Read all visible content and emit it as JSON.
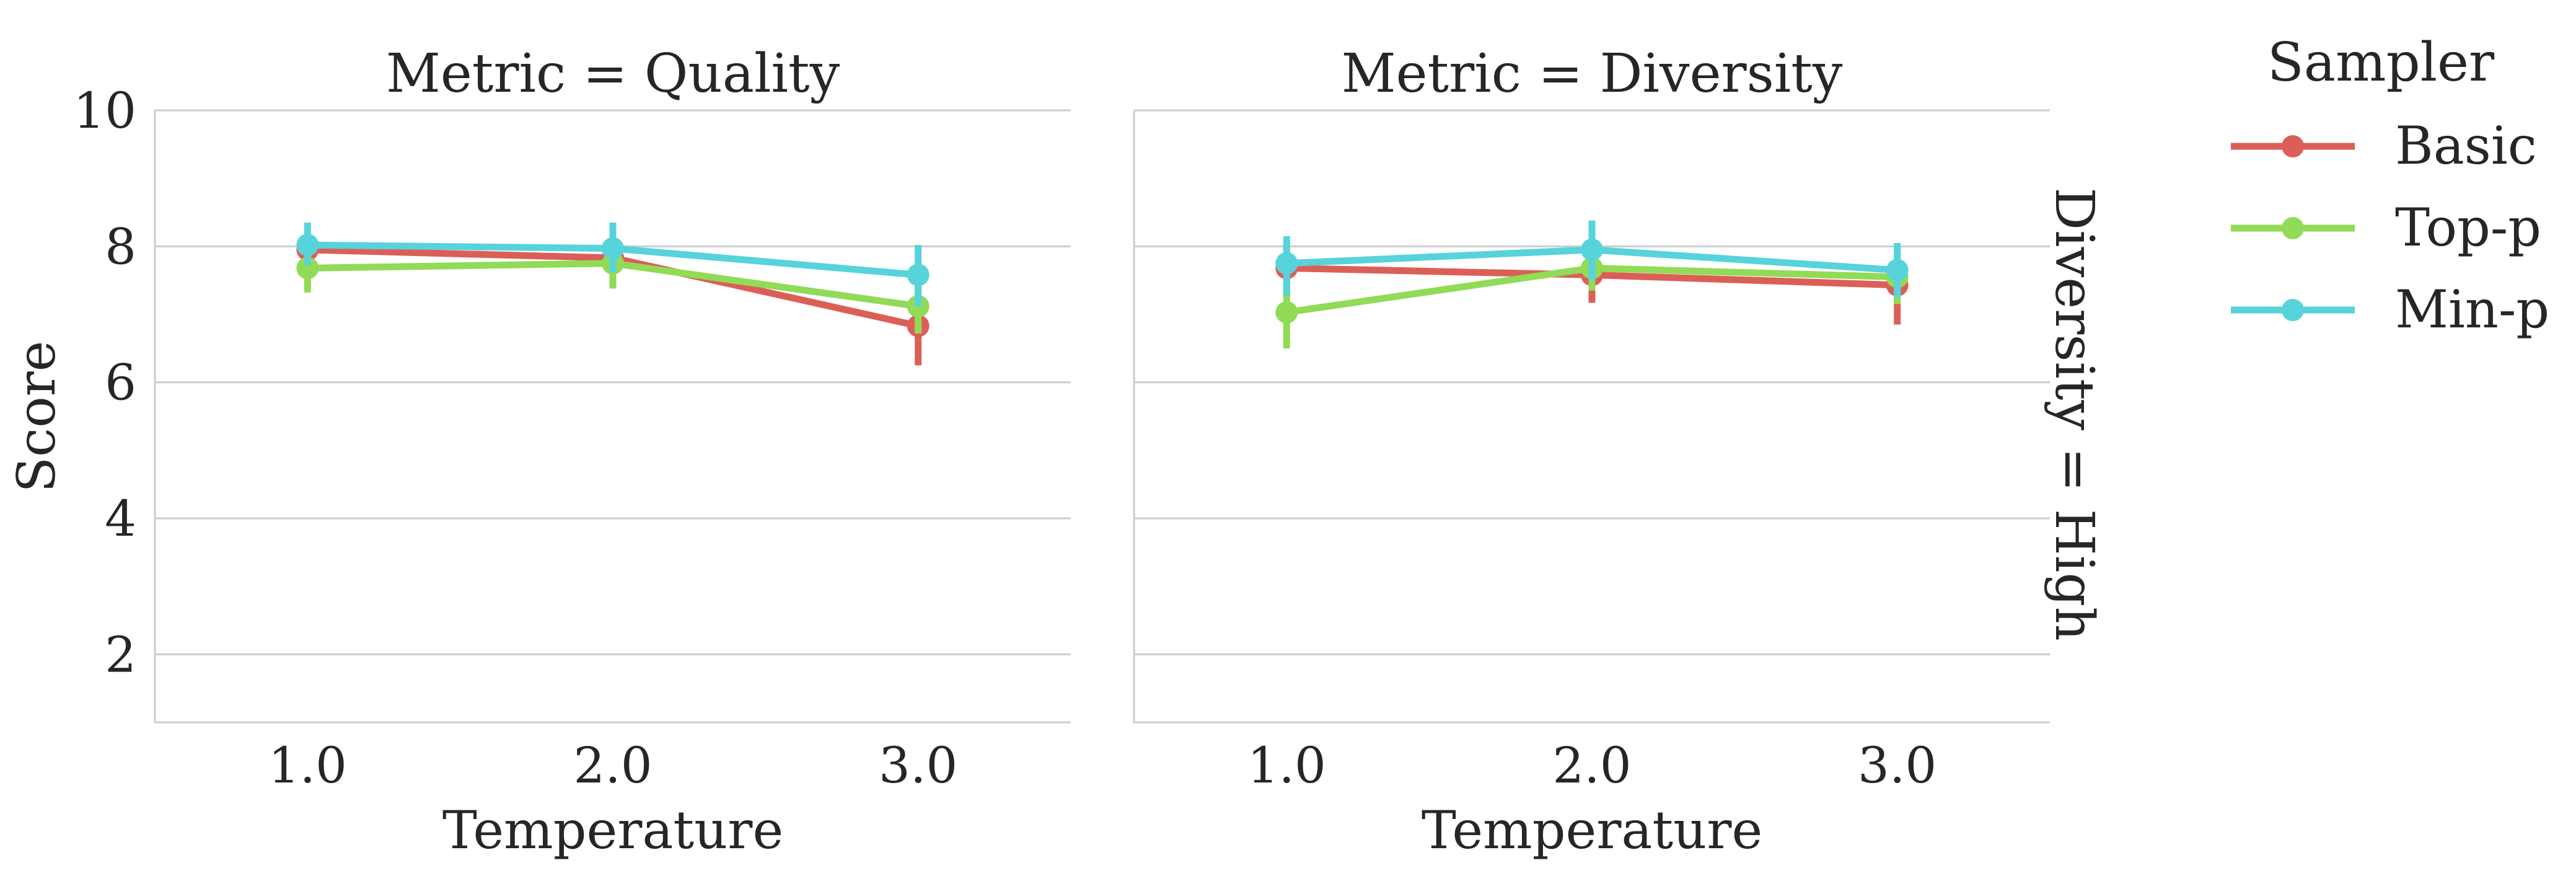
{
  "chart_data": {
    "type": "line",
    "ylabel": "Score",
    "xlabel": "Temperature",
    "ylim": [
      1,
      10
    ],
    "yticks": [
      2,
      4,
      6,
      8,
      10
    ],
    "categories": [
      "1.0",
      "2.0",
      "3.0"
    ],
    "row_label": "Diversity = High",
    "grid": "horizontal",
    "legend": {
      "title": "Sampler",
      "placement": "right",
      "entries": [
        "Basic",
        "Top-p",
        "Min-p"
      ]
    },
    "panels": [
      {
        "title": "Metric = Quality",
        "series": [
          {
            "name": "Basic",
            "color": "#db5f57",
            "values": [
              7.95,
              7.83,
              6.83
            ],
            "err_low": [
              7.75,
              7.55,
              6.25
            ],
            "err_high": [
              8.15,
              8.05,
              7.35
            ]
          },
          {
            "name": "Top-p",
            "color": "#91db57",
            "values": [
              7.68,
              7.75,
              7.12
            ],
            "err_low": [
              7.32,
              7.38,
              6.72
            ],
            "err_high": [
              8.02,
              8.08,
              7.48
            ]
          },
          {
            "name": "Min-p",
            "color": "#57d3db",
            "values": [
              8.02,
              7.97,
              7.58
            ],
            "err_low": [
              7.72,
              7.62,
              7.12
            ],
            "err_high": [
              8.35,
              8.35,
              8.02
            ]
          }
        ]
      },
      {
        "title": "Metric = Diversity",
        "series": [
          {
            "name": "Basic",
            "color": "#db5f57",
            "values": [
              7.68,
              7.58,
              7.43
            ],
            "err_low": [
              7.25,
              7.17,
              6.85
            ],
            "err_high": [
              8.05,
              7.97,
              7.92
            ]
          },
          {
            "name": "Top-p",
            "color": "#91db57",
            "values": [
              7.03,
              7.68,
              7.55
            ],
            "err_low": [
              6.5,
              7.35,
              7.15
            ],
            "err_high": [
              7.55,
              8.0,
              7.9
            ]
          },
          {
            "name": "Min-p",
            "color": "#57d3db",
            "values": [
              7.75,
              7.95,
              7.65
            ],
            "err_low": [
              7.28,
              7.5,
              7.25
            ],
            "err_high": [
              8.15,
              8.38,
              8.05
            ]
          }
        ]
      }
    ]
  }
}
